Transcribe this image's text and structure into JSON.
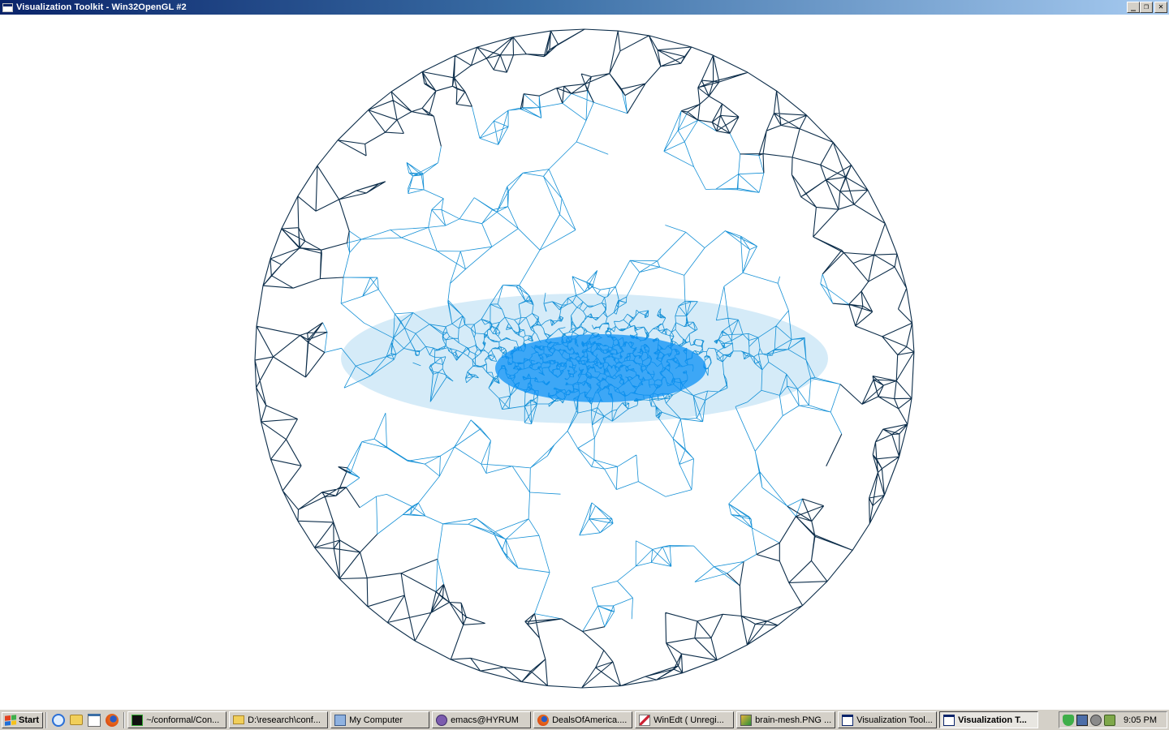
{
  "window": {
    "title": "Visualization Toolkit - Win32OpenGL #2",
    "controls": {
      "minimize": "_",
      "restore": "❐",
      "close": "✕"
    }
  },
  "scene": {
    "description_icon": "wireframe-sphere-mesh",
    "colors": {
      "outer_edges": "#0c2d4a",
      "inner_edges": "#1590d6",
      "dense_core": "#0a90f5",
      "background": "#ffffff"
    }
  },
  "taskbar": {
    "start_label": "Start",
    "quick_launch": [
      "ie-icon",
      "folder-icon",
      "notepad-icon",
      "firefox-icon"
    ],
    "tasks": [
      {
        "label": "~/conformal/Con...",
        "icon": "terminal-icon",
        "active": false
      },
      {
        "label": "D:\\research\\conf...",
        "icon": "folder-icon",
        "active": false
      },
      {
        "label": "My Computer",
        "icon": "computer-icon",
        "active": false
      },
      {
        "label": "emacs@HYRUM",
        "icon": "emacs-icon",
        "active": false
      },
      {
        "label": "DealsOfAmerica....",
        "icon": "firefox-icon",
        "active": false
      },
      {
        "label": "WinEdt  ( Unregi...",
        "icon": "winedt-icon",
        "active": false
      },
      {
        "label": "brain-mesh.PNG ...",
        "icon": "paint-icon",
        "active": false
      },
      {
        "label": "Visualization Tool...",
        "icon": "window-icon",
        "active": false
      },
      {
        "label": "Visualization T...",
        "icon": "window-icon",
        "active": true
      }
    ],
    "tray_icons": [
      "shield-icon",
      "network-icon",
      "speaker-icon",
      "update-icon"
    ],
    "clock": "9:05 PM"
  }
}
